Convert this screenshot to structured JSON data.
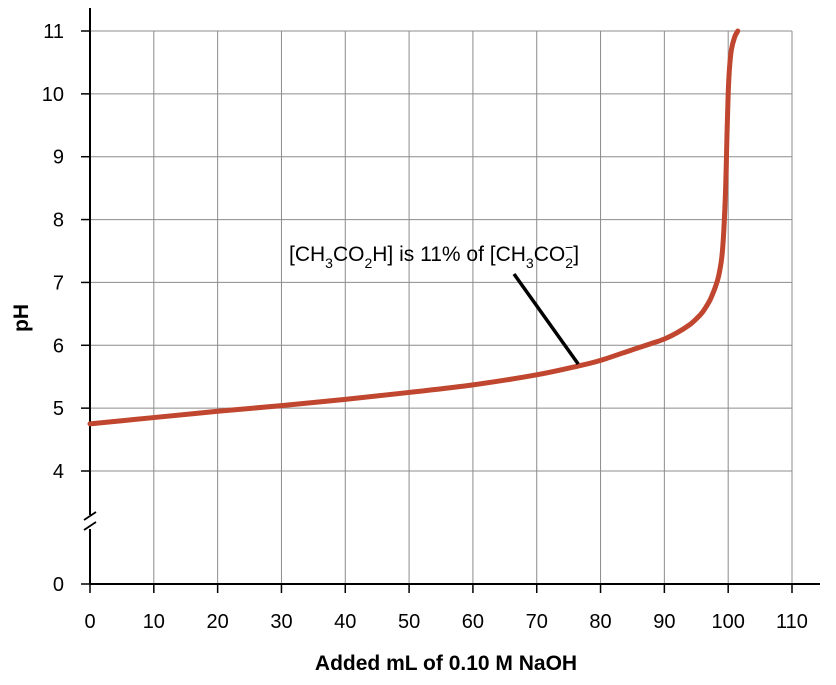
{
  "chart_data": {
    "type": "line",
    "title": "",
    "xlabel": "Added mL of 0.10 M NaOH",
    "ylabel": "pH",
    "xlim": [
      0,
      110
    ],
    "ylim_upper": [
      4,
      11
    ],
    "y_break_value": 0,
    "x_ticks": [
      0,
      10,
      20,
      30,
      40,
      50,
      60,
      70,
      80,
      90,
      100,
      110
    ],
    "y_ticks": [
      0,
      4,
      5,
      6,
      7,
      8,
      9,
      10,
      11
    ],
    "grid": true,
    "line_color": "#c0462f",
    "series": [
      {
        "x": [
          0,
          5,
          10,
          20,
          30,
          40,
          50,
          60,
          70,
          76.5,
          80,
          85,
          88,
          90,
          92,
          94,
          95,
          96,
          97,
          97.5,
          98,
          98.5,
          99,
          99.3,
          99.6,
          99.8,
          100,
          100.2,
          100.5,
          101,
          101.5
        ],
        "y": [
          4.75,
          4.8,
          4.85,
          4.95,
          5.04,
          5.14,
          5.25,
          5.37,
          5.53,
          5.67,
          5.76,
          5.93,
          6.03,
          6.1,
          6.2,
          6.33,
          6.42,
          6.53,
          6.69,
          6.8,
          6.93,
          7.1,
          7.4,
          7.8,
          8.5,
          9.3,
          10.0,
          10.4,
          10.7,
          10.9,
          11.0
        ]
      }
    ],
    "annotation": {
      "text_parts": [
        "[CH",
        "3",
        "CO",
        "2",
        "H] is 11% of [CH",
        "3",
        "CO",
        "2",
        "−",
        "]"
      ],
      "point_x": 76.5,
      "point_y": 5.67
    }
  }
}
